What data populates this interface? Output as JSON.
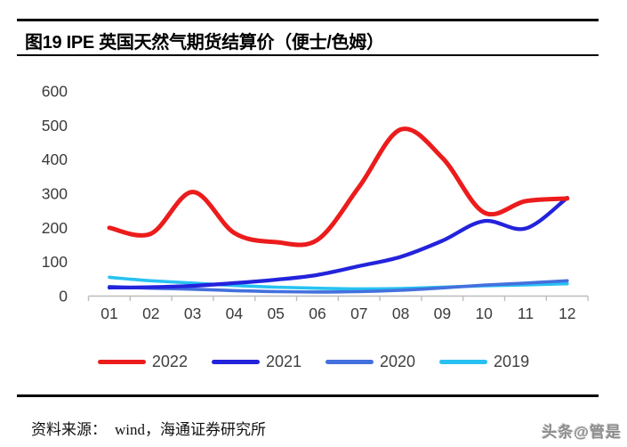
{
  "title": {
    "text": "图19 IPE 英国天然气期货结算价（便士/色姆）"
  },
  "chart_data": {
    "type": "line",
    "title": "图19 IPE 英国天然气期货结算价（便士/色姆）",
    "xlabel": "",
    "ylabel": "",
    "x_labels": [
      "01",
      "02",
      "03",
      "04",
      "05",
      "06",
      "07",
      "08",
      "09",
      "10",
      "11",
      "12"
    ],
    "series": [
      {
        "name": "2022",
        "color": "#EC1C1C",
        "values": [
          200,
          183,
          305,
          185,
          158,
          165,
          320,
          488,
          405,
          245,
          278,
          286
        ]
      },
      {
        "name": "2021",
        "color": "#2323DC",
        "values": [
          25,
          26,
          30,
          38,
          48,
          62,
          88,
          115,
          162,
          220,
          198,
          288
        ]
      },
      {
        "name": "2020",
        "color": "#4470DE",
        "values": [
          28,
          23,
          20,
          16,
          13,
          12,
          13,
          17,
          24,
          32,
          38,
          45
        ]
      },
      {
        "name": "2019",
        "color": "#27C2F2",
        "values": [
          55,
          45,
          38,
          31,
          26,
          23,
          21,
          22,
          26,
          30,
          33,
          36
        ]
      }
    ],
    "ylim": [
      0,
      600
    ],
    "yticks": [
      0,
      100,
      200,
      300,
      400,
      500,
      600
    ],
    "grid": false,
    "smooth": true,
    "legend_position": "bottom",
    "axis_color": "#bdbdbd",
    "tick_label_color": "#3b3b3b"
  },
  "footer": {
    "source_label": "资料来源：",
    "source_text": "wind，海通证券研究所",
    "watermark": "头条@管是"
  }
}
